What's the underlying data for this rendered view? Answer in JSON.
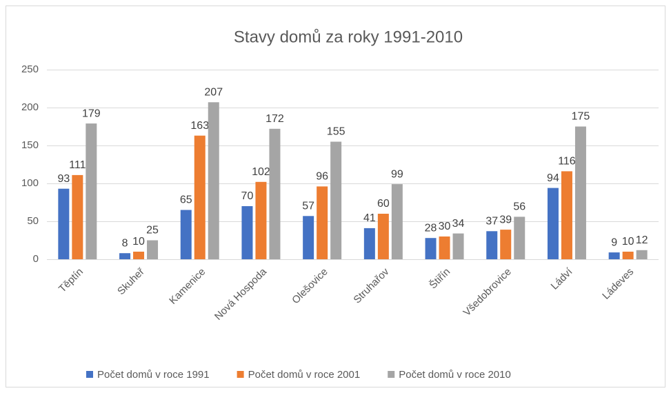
{
  "chart_data": {
    "type": "bar",
    "title": "Stavy domů za roky 1991-2010",
    "categories": [
      "Těptín",
      "Skuheř",
      "Kamenice",
      "Nová Hospoda",
      "Olešovice",
      "Struhařov",
      "Štiřín",
      "Všedobrovice",
      "Ládví",
      "Ládeves"
    ],
    "series": [
      {
        "name": "Počet domů v roce 1991",
        "color": "#4472c4",
        "values": [
          93,
          8,
          65,
          70,
          57,
          41,
          28,
          37,
          94,
          9
        ]
      },
      {
        "name": "Počet domů v roce 2001",
        "color": "#ed7d31",
        "values": [
          111,
          10,
          163,
          102,
          96,
          60,
          30,
          39,
          116,
          10
        ]
      },
      {
        "name": "Počet domů v roce 2010",
        "color": "#a5a5a5",
        "values": [
          179,
          25,
          207,
          172,
          155,
          99,
          34,
          56,
          175,
          12
        ]
      }
    ],
    "ylim": [
      0,
      250
    ],
    "yticks": [
      0,
      50,
      100,
      150,
      200,
      250
    ],
    "grid": true,
    "legend": "bottom"
  }
}
